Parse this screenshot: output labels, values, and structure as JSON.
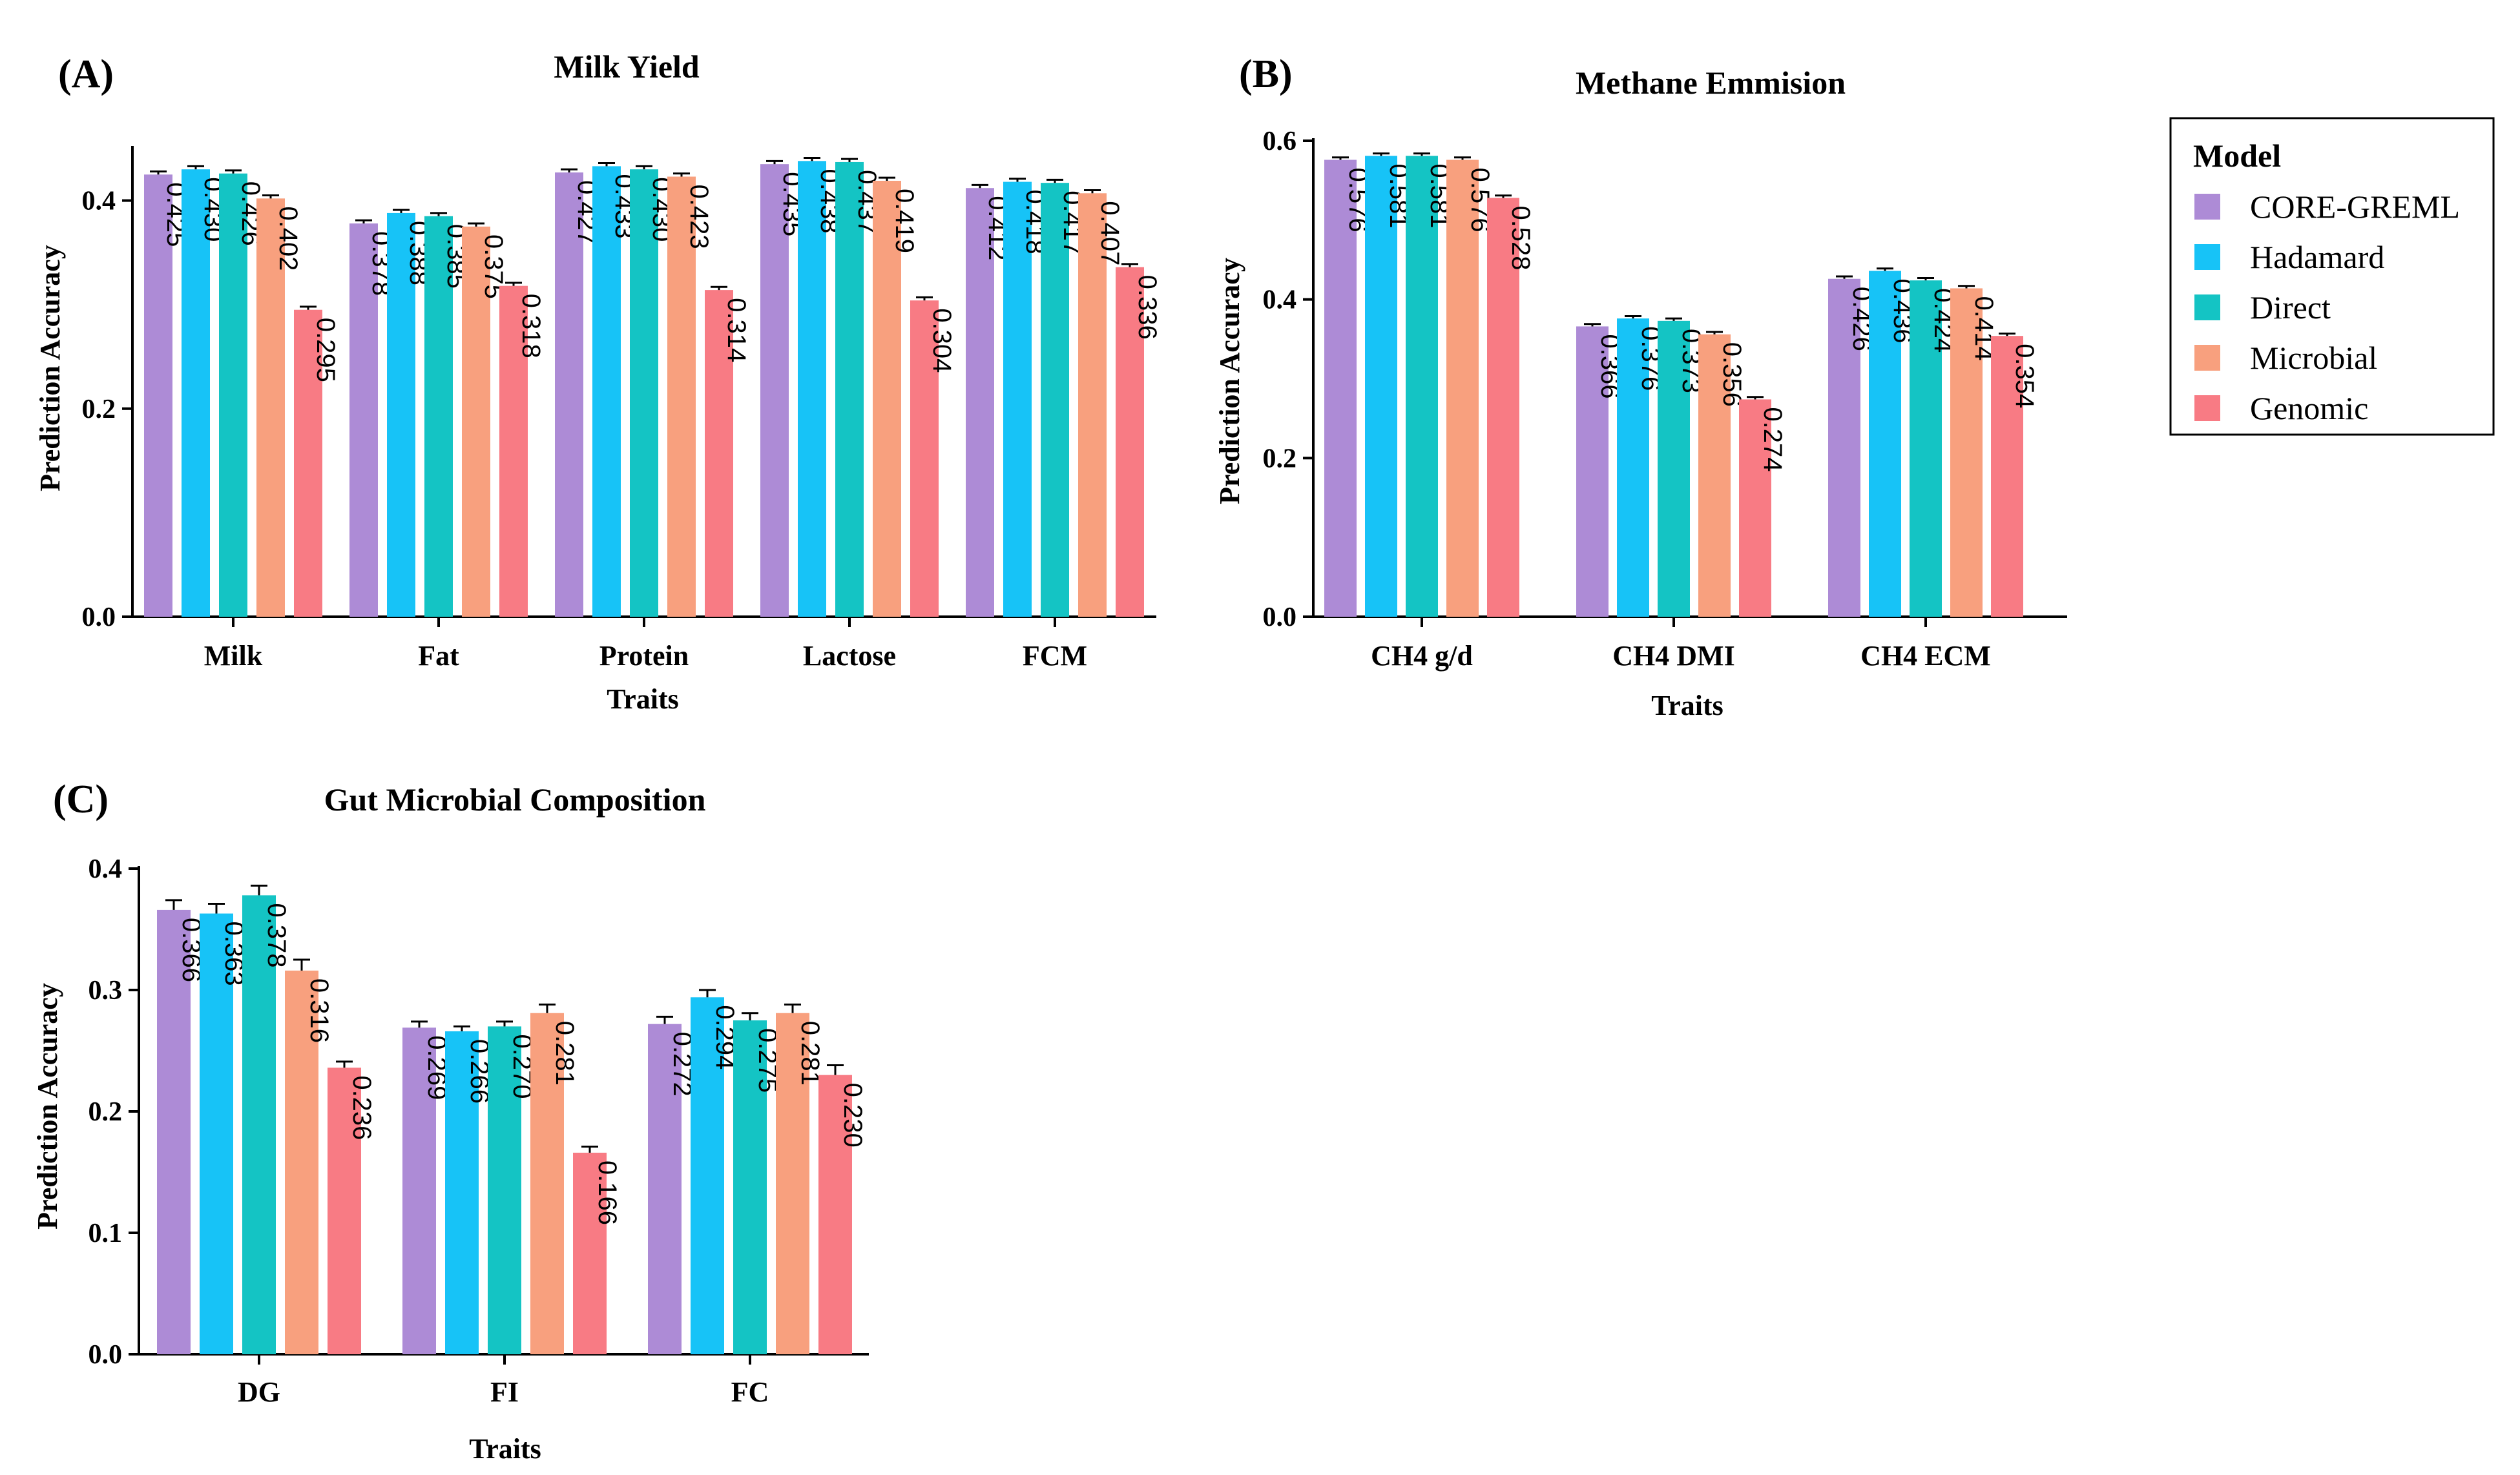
{
  "legend": {
    "title": "Model",
    "items": [
      {
        "name": "CORE-GREML",
        "color": "#ad8bd6"
      },
      {
        "name": "Hadamard",
        "color": "#17c3f7"
      },
      {
        "name": "Direct",
        "color": "#14c4c4"
      },
      {
        "name": "Microbial",
        "color": "#f8a07e"
      },
      {
        "name": "Genomic",
        "color": "#f87b84"
      }
    ]
  },
  "chart_data": [
    {
      "letter": "(A)",
      "type": "bar",
      "title": "Milk Yield",
      "xlabel": "Traits",
      "ylabel": "Prediction Accuracy",
      "ylim": [
        0,
        0.45
      ],
      "yticks": [
        "0.0",
        "0.2",
        "0.4"
      ],
      "ytick_values": [
        0,
        0.2,
        0.4
      ],
      "categories": [
        "Milk",
        "Fat",
        "Protein",
        "Lactose",
        "FCM"
      ],
      "series": [
        {
          "name": "CORE-GREML",
          "values": [
            0.425,
            0.378,
            0.427,
            0.435,
            0.412
          ],
          "labels": [
            "0.425",
            "0.378",
            "0.427",
            "0.435",
            "0.412"
          ],
          "errors": [
            0.003,
            0.003,
            0.003,
            0.003,
            0.003
          ]
        },
        {
          "name": "Hadamard",
          "values": [
            0.43,
            0.388,
            0.433,
            0.438,
            0.418
          ],
          "labels": [
            "0.430",
            "0.388",
            "0.433",
            "0.438",
            "0.418"
          ],
          "errors": [
            0.003,
            0.003,
            0.003,
            0.003,
            0.003
          ]
        },
        {
          "name": "Direct",
          "values": [
            0.426,
            0.385,
            0.43,
            0.437,
            0.417
          ],
          "labels": [
            "0.426",
            "0.385",
            "0.430",
            "0.437",
            "0.417"
          ],
          "errors": [
            0.003,
            0.003,
            0.003,
            0.003,
            0.003
          ]
        },
        {
          "name": "Microbial",
          "values": [
            0.402,
            0.375,
            0.423,
            0.419,
            0.407
          ],
          "labels": [
            "0.402",
            "0.375",
            "0.423",
            "0.419",
            "0.407"
          ],
          "errors": [
            0.003,
            0.003,
            0.003,
            0.003,
            0.003
          ]
        },
        {
          "name": "Genomic",
          "values": [
            0.295,
            0.318,
            0.314,
            0.304,
            0.336
          ],
          "labels": [
            "0.295",
            "0.318",
            "0.314",
            "0.304",
            "0.336"
          ],
          "errors": [
            0.003,
            0.003,
            0.003,
            0.003,
            0.003
          ]
        }
      ]
    },
    {
      "letter": "(B)",
      "type": "bar",
      "title": "Methane Emmision",
      "xlabel": "Traits",
      "ylabel": "Prediction Accuracy",
      "ylim": [
        0,
        0.6
      ],
      "yticks": [
        "0.0",
        "0.2",
        "0.4",
        "0.6"
      ],
      "ytick_values": [
        0,
        0.2,
        0.4,
        0.6
      ],
      "categories": [
        "CH4 g/d",
        "CH4 DMI",
        "CH4 ECM"
      ],
      "series": [
        {
          "name": "CORE-GREML",
          "values": [
            0.576,
            0.366,
            0.426
          ],
          "labels": [
            "0.576",
            "0.366",
            "0.426"
          ],
          "errors": [
            0.003,
            0.003,
            0.003
          ]
        },
        {
          "name": "Hadamard",
          "values": [
            0.581,
            0.376,
            0.436
          ],
          "labels": [
            "0.581",
            "0.376",
            "0.436"
          ],
          "errors": [
            0.003,
            0.003,
            0.003
          ]
        },
        {
          "name": "Direct",
          "values": [
            0.581,
            0.373,
            0.424
          ],
          "labels": [
            "0.581",
            "0.373",
            "0.424"
          ],
          "errors": [
            0.003,
            0.003,
            0.003
          ]
        },
        {
          "name": "Microbial",
          "values": [
            0.576,
            0.356,
            0.414
          ],
          "labels": [
            "0.576",
            "0.356",
            "0.414"
          ],
          "errors": [
            0.003,
            0.003,
            0.003
          ]
        },
        {
          "name": "Genomic",
          "values": [
            0.528,
            0.274,
            0.354
          ],
          "labels": [
            "0.528",
            "0.274",
            "0.354"
          ],
          "errors": [
            0.003,
            0.003,
            0.003
          ]
        }
      ]
    },
    {
      "letter": "(C)",
      "type": "bar",
      "title": "Gut Microbial Composition",
      "xlabel": "Traits",
      "ylabel": "Prediction  Accuracy",
      "ylim": [
        0,
        0.4
      ],
      "yticks": [
        "0.0",
        "0.1",
        "0.2",
        "0.3",
        "0.4"
      ],
      "ytick_values": [
        0,
        0.1,
        0.2,
        0.3,
        0.4
      ],
      "categories": [
        "DG",
        "FI",
        "FC"
      ],
      "series": [
        {
          "name": "CORE-GREML",
          "values": [
            0.366,
            0.269,
            0.272
          ],
          "labels": [
            "0.366",
            "0.269",
            "0.272"
          ],
          "errors": [
            0.008,
            0.005,
            0.006
          ]
        },
        {
          "name": "Hadamard",
          "values": [
            0.363,
            0.266,
            0.294
          ],
          "labels": [
            "0.363",
            "0.266",
            "0.294"
          ],
          "errors": [
            0.008,
            0.004,
            0.006
          ]
        },
        {
          "name": "Direct",
          "values": [
            0.378,
            0.27,
            0.275
          ],
          "labels": [
            "0.378",
            "0.270",
            "0.275"
          ],
          "errors": [
            0.008,
            0.004,
            0.006
          ]
        },
        {
          "name": "Microbial",
          "values": [
            0.316,
            0.281,
            0.281
          ],
          "labels": [
            "0.316",
            "0.281",
            "0.281"
          ],
          "errors": [
            0.009,
            0.007,
            0.007
          ]
        },
        {
          "name": "Genomic",
          "values": [
            0.236,
            0.166,
            0.23
          ],
          "labels": [
            "0.236",
            "0.166",
            "0.230"
          ],
          "errors": [
            0.005,
            0.005,
            0.008
          ]
        }
      ]
    }
  ]
}
